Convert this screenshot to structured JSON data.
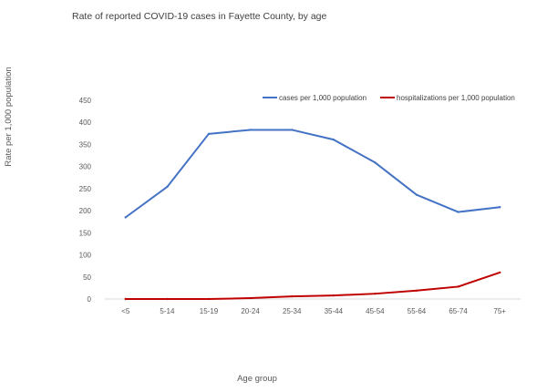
{
  "chart_data": {
    "type": "line",
    "title": "Rate of reported COVID-19 cases in Fayette County, by age",
    "xlabel": "Age group",
    "ylabel": "Rate per 1,000 population",
    "categories": [
      "<5",
      "5-14",
      "15-19",
      "20-24",
      "25-34",
      "35-44",
      "45-54",
      "55-64",
      "65-74",
      "75+"
    ],
    "ylim": [
      0,
      450
    ],
    "yticks": [
      0,
      50,
      100,
      150,
      200,
      250,
      300,
      350,
      400,
      450
    ],
    "grid": false,
    "legend_position": "top-right",
    "series": [
      {
        "name": "cases per 1,000 population",
        "color": "#4472c4",
        "values": [
          185,
          254,
          374,
          383,
          383,
          361,
          309,
          236,
          197,
          208
        ]
      },
      {
        "name": "hospitalizations per 1,000 population",
        "color": "#c00000",
        "values": [
          0,
          0,
          0,
          2,
          6,
          8,
          12,
          19,
          28,
          60
        ]
      }
    ]
  }
}
